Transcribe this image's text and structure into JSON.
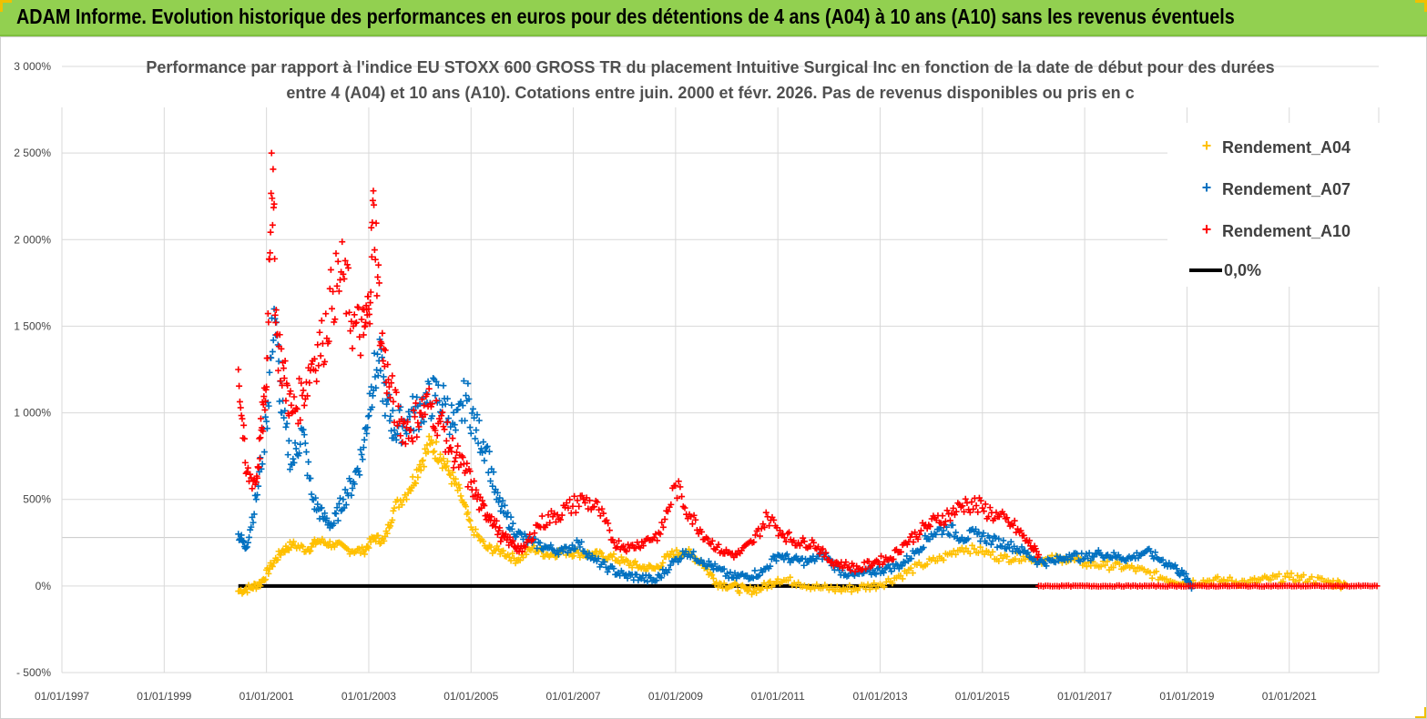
{
  "banner": {
    "title": "ADAM Informe. Evolution historique des performances en euros pour des détentions de 4 ans (A04) à 10 ans (A10) sans les revenus éventuels"
  },
  "colors": {
    "banner": "#92D050",
    "a04": "#FFC000",
    "a07": "#0070C0",
    "a10": "#FF0000",
    "zero": "#000000",
    "grid": "#d9d9d9"
  },
  "chart_data": {
    "type": "scatter",
    "title_line1": "Performance par rapport à l'indice EU STOXX 600 GROSS TR  du placement Intuitive Surgical Inc en fonction de la date de début pour des durées",
    "title_line2": "entre 4 (A04) et 10 ans (A10). Cotations entre juin. 2000 et févr. 2026. Pas de revenus disponibles ou pris en c",
    "xlim": [
      1997.0,
      2022.75
    ],
    "ylim": [
      -500,
      3000
    ],
    "x_ticks": [
      1997,
      1999,
      2001,
      2003,
      2005,
      2007,
      2009,
      2011,
      2013,
      2015,
      2017,
      2019,
      2021
    ],
    "x_tick_labels": [
      "01/01/1997",
      "01/01/1999",
      "01/01/2001",
      "01/01/2003",
      "01/01/2005",
      "01/01/2007",
      "01/01/2009",
      "01/01/2011",
      "01/01/2013",
      "01/01/2015",
      "01/01/2017",
      "01/01/2019",
      "01/01/2021"
    ],
    "y_ticks": [
      -500,
      0,
      500,
      1000,
      1500,
      2000,
      2500,
      3000
    ],
    "y_tick_labels": [
      "- 500%",
      "0%",
      "500%",
      "1 000%",
      "1 500%",
      "2 000%",
      "2 500%",
      "3 000%"
    ],
    "legend": [
      "Rendement_A04",
      "Rendement_A07",
      "Rendement_A10",
      "0,0%"
    ],
    "legend_position": "top-right",
    "series": [
      {
        "name": "Rendement_A04",
        "x": [
          2000.45,
          2000.7,
          2000.9,
          2001.1,
          2001.3,
          2001.5,
          2001.8,
          2002.0,
          2002.3,
          2002.6,
          2002.9,
          2003.1,
          2003.3,
          2003.5,
          2003.8,
          2004.0,
          2004.2,
          2004.4,
          2004.6,
          2004.8,
          2005.0,
          2005.3,
          2005.6,
          2005.9,
          2006.2,
          2006.5,
          2006.8,
          2007.1,
          2007.4,
          2007.7,
          2008.0,
          2008.3,
          2008.6,
          2008.9,
          2009.2,
          2009.5,
          2009.8,
          2010.1,
          2010.4,
          2010.7,
          2011.0,
          2011.4,
          2011.8,
          2012.2,
          2012.6,
          2013.0,
          2013.4,
          2013.8,
          2014.2,
          2014.6,
          2015.0,
          2015.4,
          2015.8,
          2016.2,
          2016.6,
          2017.0,
          2017.4,
          2017.8,
          2018.2,
          2018.6,
          2019.0,
          2019.4,
          2019.8,
          2020.2,
          2020.6,
          2021.0,
          2021.4,
          2021.8,
          2022.1
        ],
        "y": [
          -30,
          -10,
          20,
          120,
          200,
          240,
          210,
          260,
          240,
          210,
          200,
          280,
          260,
          450,
          560,
          700,
          820,
          760,
          640,
          520,
          340,
          220,
          200,
          150,
          220,
          180,
          200,
          190,
          180,
          170,
          140,
          110,
          100,
          180,
          200,
          140,
          20,
          0,
          -30,
          -10,
          40,
          20,
          -10,
          -20,
          -10,
          10,
          60,
          120,
          160,
          220,
          200,
          160,
          170,
          150,
          160,
          130,
          120,
          110,
          80,
          40,
          20,
          30,
          30,
          20,
          40,
          50,
          40,
          20,
          10
        ]
      },
      {
        "name": "Rendement_A07",
        "x": [
          2000.45,
          2000.6,
          2000.8,
          2001.0,
          2001.15,
          2001.3,
          2001.5,
          2001.7,
          2001.9,
          2002.1,
          2002.3,
          2002.5,
          2002.7,
          2002.9,
          2003.05,
          2003.2,
          2003.35,
          2003.5,
          2003.7,
          2003.9,
          2004.1,
          2004.3,
          2004.5,
          2004.7,
          2004.9,
          2005.1,
          2005.3,
          2005.5,
          2005.7,
          2005.9,
          2006.2,
          2006.5,
          2006.8,
          2007.1,
          2007.4,
          2007.7,
          2008.0,
          2008.3,
          2008.6,
          2008.9,
          2009.2,
          2009.5,
          2009.8,
          2010.1,
          2010.4,
          2010.7,
          2011.0,
          2011.3,
          2011.6,
          2011.9,
          2012.2,
          2012.5,
          2012.8,
          2013.1,
          2013.4,
          2013.7,
          2014.0,
          2014.3,
          2014.6,
          2014.9,
          2015.2,
          2015.5,
          2015.8,
          2016.1,
          2016.4,
          2016.7,
          2017.0,
          2017.3,
          2017.6,
          2017.9,
          2018.2,
          2018.5,
          2018.8,
          2019.0,
          2019.1
        ],
        "y": [
          300,
          220,
          500,
          950,
          1600,
          1000,
          700,
          900,
          500,
          400,
          350,
          500,
          600,
          800,
          1150,
          1300,
          1050,
          900,
          950,
          1000,
          1050,
          1100,
          1050,
          900,
          1100,
          900,
          800,
          500,
          400,
          300,
          250,
          220,
          200,
          250,
          150,
          100,
          60,
          50,
          30,
          120,
          200,
          150,
          100,
          50,
          60,
          80,
          180,
          150,
          140,
          180,
          90,
          60,
          80,
          100,
          120,
          200,
          300,
          340,
          280,
          300,
          260,
          240,
          200,
          140,
          140,
          180,
          160,
          190,
          170,
          160,
          200,
          150,
          100,
          40,
          0
        ]
      },
      {
        "name": "Rendement_A10",
        "x": [
          2000.45,
          2000.6,
          2000.8,
          2000.9,
          2001.0,
          2001.1,
          2001.2,
          2001.35,
          2001.5,
          2001.7,
          2001.9,
          2002.1,
          2002.3,
          2002.5,
          2002.7,
          2002.9,
          2003.0,
          2003.1,
          2003.25,
          2003.4,
          2003.6,
          2003.8,
          2004.0,
          2004.2,
          2004.4,
          2004.6,
          2004.8,
          2005.0,
          2005.2,
          2005.4,
          2005.6,
          2005.8,
          2006.0,
          2006.3,
          2006.6,
          2006.9,
          2007.2,
          2007.5,
          2007.8,
          2008.1,
          2008.4,
          2008.7,
          2009.0,
          2009.3,
          2009.6,
          2009.9,
          2010.2,
          2010.5,
          2010.8,
          2011.1,
          2011.4,
          2011.7,
          2012.0,
          2012.3,
          2012.6,
          2012.9,
          2013.2,
          2013.5,
          2013.8,
          2014.1,
          2014.4,
          2014.7,
          2015.0,
          2015.3,
          2015.6,
          2015.9,
          2016.1
        ],
        "y": [
          1250,
          650,
          600,
          900,
          1150,
          2500,
          1450,
          1200,
          1000,
          1100,
          1300,
          1400,
          1700,
          1800,
          1500,
          1450,
          1600,
          2200,
          1400,
          1150,
          950,
          900,
          1000,
          1050,
          950,
          800,
          700,
          600,
          450,
          400,
          280,
          250,
          200,
          350,
          400,
          450,
          500,
          440,
          250,
          220,
          260,
          300,
          580,
          400,
          280,
          200,
          180,
          250,
          400,
          300,
          250,
          250,
          150,
          120,
          100,
          140,
          160,
          250,
          320,
          380,
          420,
          480,
          450,
          400,
          350,
          250,
          180
        ]
      }
    ],
    "a10_zero_band": {
      "x_start": 2016.1,
      "x_end": 2022.75,
      "y": 0
    },
    "zero_line": {
      "name": "0,0%",
      "x_start": 2000.45,
      "x_end": 2016.1,
      "y": 0
    }
  }
}
